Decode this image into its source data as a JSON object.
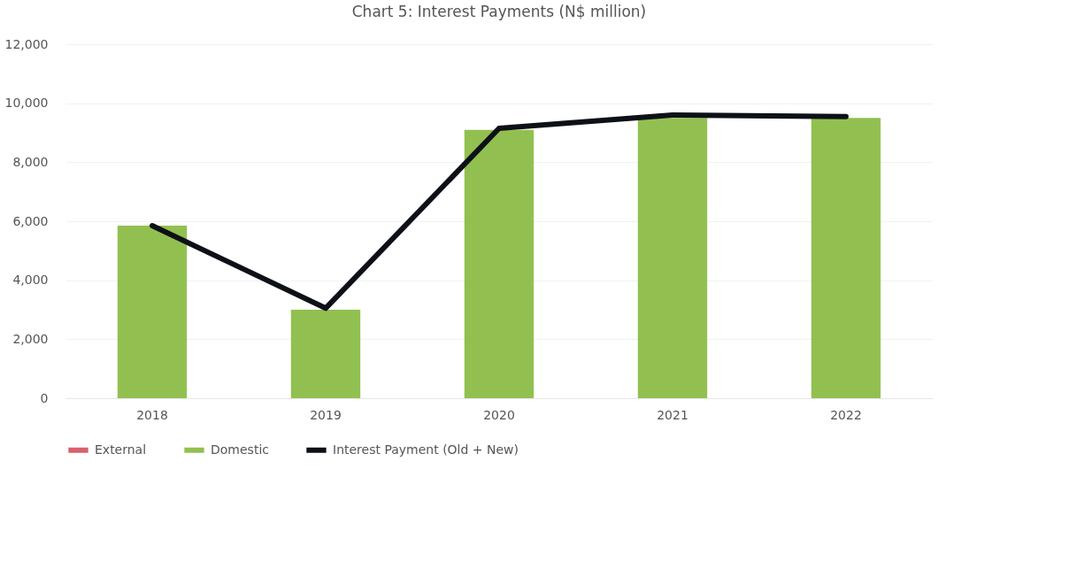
{
  "chart_data": {
    "type": "bar",
    "title": "Chart 5: Interest Payments (N$ million)",
    "categories": [
      "2018",
      "2019",
      "2020",
      "2021",
      "2022"
    ],
    "series": [
      {
        "name": "External",
        "color": "#d9606d",
        "values": [
          0,
          0,
          0,
          0,
          0
        ]
      },
      {
        "name": "Domestic",
        "color": "#92c050",
        "values": [
          5850,
          3000,
          9100,
          9500,
          9500
        ]
      },
      {
        "name": "Interest Payment (Old + New)",
        "type": "line",
        "color": "#0d1117",
        "values": [
          5850,
          3050,
          9150,
          9600,
          9550
        ]
      }
    ],
    "ylim": [
      0,
      12000
    ],
    "yticks": [
      0,
      {
        "value": 2000,
        "label": "2,000"
      },
      {
        "value": 4000,
        "label": "4,000"
      },
      {
        "value": 6000,
        "label": "6,000"
      },
      {
        "value": 8000,
        "label": "8,000"
      },
      {
        "value": 10000,
        "label": "10,000"
      },
      {
        "value": 12000,
        "label": "12,000"
      }
    ],
    "grid": "y",
    "legend": "bottom",
    "line_style": "solid",
    "marker": "none"
  }
}
